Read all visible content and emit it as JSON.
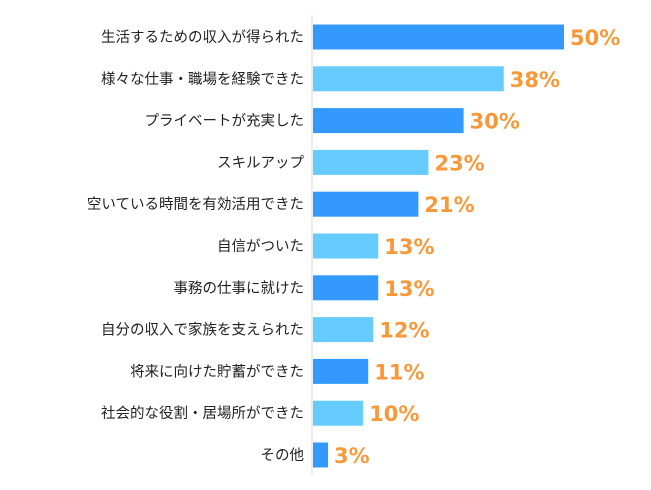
{
  "chart_data": {
    "type": "bar",
    "orientation": "horizontal",
    "categories": [
      "生活するための収入が得られた",
      "様々な仕事・職場を経験できた",
      "プライベートが充実した",
      "スキルアップ",
      "空いている時間を有効活用できた",
      "自信がついた",
      "事務の仕事に就けた",
      "自分の収入で家族を支えられた",
      "将来に向けた貯蓄ができた",
      "社会的な役割・居場所ができた",
      "その他"
    ],
    "values": [
      50,
      38,
      30,
      23,
      21,
      13,
      13,
      12,
      11,
      10,
      3
    ],
    "value_labels": [
      "50%",
      "38%",
      "30%",
      "23%",
      "21%",
      "13%",
      "13%",
      "12%",
      "11%",
      "10%",
      "3%"
    ],
    "xlim": [
      0,
      60
    ],
    "grid": false,
    "colors": {
      "bar_primary": "#3399FF",
      "bar_alternate": "#66CCFF",
      "value_label": "#F7993A",
      "axis": "#D9D9D9"
    }
  }
}
